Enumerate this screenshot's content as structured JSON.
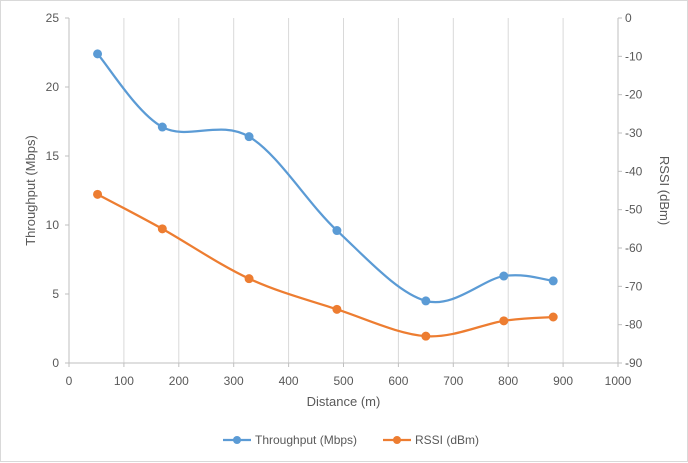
{
  "chart_data": {
    "type": "line",
    "title": "",
    "xlabel": "Distance (m)",
    "ylabel": "Throughput (Mbps)",
    "y2label": "RSSI (dBm)",
    "xlim": [
      0,
      1000
    ],
    "ylim": [
      0,
      25
    ],
    "y2lim": [
      -90,
      0
    ],
    "xticks": [
      0,
      100,
      200,
      300,
      400,
      500,
      600,
      700,
      800,
      900,
      1000
    ],
    "yticks": [
      0,
      5,
      10,
      15,
      20,
      25
    ],
    "y2ticks": [
      0,
      -10,
      -20,
      -30,
      -40,
      -50,
      -60,
      -70,
      -80,
      -90
    ],
    "grid": "vertical",
    "legend_position": "bottom",
    "series": [
      {
        "name": "Throughput (Mbps)",
        "axis": "left",
        "color": "#5b9bd5",
        "x": [
          52,
          170,
          328,
          488,
          650,
          792,
          882
        ],
        "y": [
          22.4,
          17.1,
          16.4,
          9.6,
          4.5,
          6.3,
          5.95
        ]
      },
      {
        "name": "RSSI (dBm)",
        "axis": "right",
        "color": "#ed7d31",
        "x": [
          52,
          170,
          328,
          488,
          650,
          792,
          882
        ],
        "y": [
          -46,
          -55,
          -68,
          -76,
          -83,
          -79,
          -78
        ]
      }
    ]
  }
}
